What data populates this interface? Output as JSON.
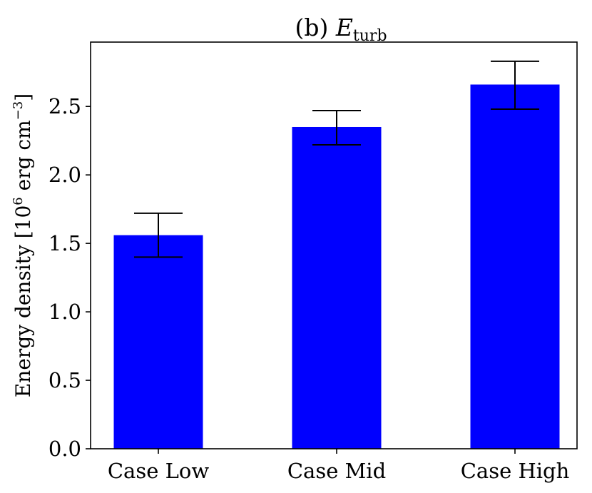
{
  "chart_data": {
    "type": "bar",
    "title": {
      "prefix": "(b) ",
      "main": "E",
      "sub": "turb"
    },
    "ylabel": {
      "main": "Energy density [10",
      "sup1": "6",
      "mid": " erg cm",
      "sup2": "−3",
      "end": "]"
    },
    "xlabel": "",
    "categories": [
      "Case Low",
      "Case Mid",
      "Case High"
    ],
    "values": [
      1.56,
      2.35,
      2.66
    ],
    "errors": [
      {
        "low": 1.4,
        "high": 1.72
      },
      {
        "low": 2.22,
        "high": 2.47
      },
      {
        "low": 2.48,
        "high": 2.83
      }
    ],
    "ylim": [
      0,
      2.97
    ],
    "yticks": [
      0.0,
      0.5,
      1.0,
      1.5,
      2.0,
      2.5
    ],
    "ytick_labels": [
      "0.0",
      "0.5",
      "1.0",
      "1.5",
      "2.0",
      "2.5"
    ],
    "grid": false,
    "colors": {
      "bar": "#0000ff",
      "errorbar": "#000000",
      "axis": "#000000"
    }
  }
}
